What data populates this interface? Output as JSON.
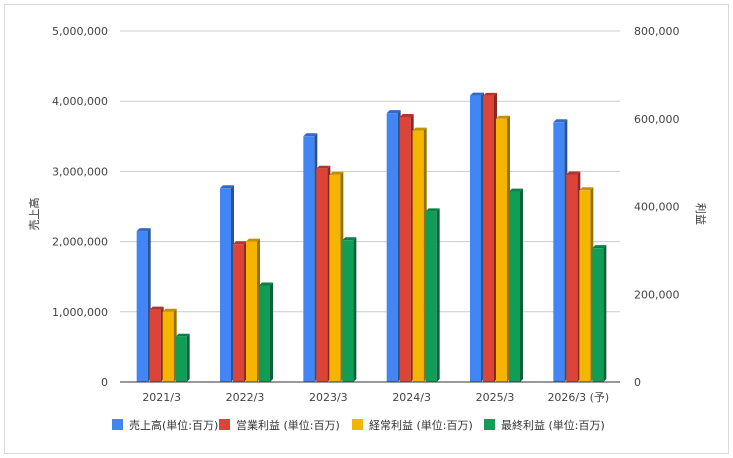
{
  "chart_data": {
    "type": "bar",
    "categories": [
      "2021/3",
      "2022/3",
      "2023/3",
      "2024/3",
      "2025/3",
      "2026/3 (予)"
    ],
    "ylabel_left": "売上高",
    "ylabel_right": "利益",
    "ylim_left": [
      0,
      5000000
    ],
    "ylim_right": [
      0,
      800000
    ],
    "yticks_left": [
      "0",
      "1,000,000",
      "2,000,000",
      "3,000,000",
      "4,000,000",
      "5,000,000"
    ],
    "yticks_right": [
      "0",
      "200,000",
      "400,000",
      "600,000",
      "800,000"
    ],
    "grid": true,
    "legend_position": "bottom",
    "series": [
      {
        "name": "売上高(単位:百万)",
        "axis": "left",
        "color": "#4285f4",
        "values": [
          2150000,
          2760000,
          3500000,
          3830000,
          4080000,
          3700000
        ]
      },
      {
        "name": "営業利益 (単位:百万)",
        "axis": "right",
        "color": "#db4437",
        "values": [
          165000,
          314000,
          486000,
          604000,
          652000,
          473000
        ]
      },
      {
        "name": "経常利益 (単位:百万)",
        "axis": "right",
        "color": "#f4b400",
        "values": [
          160000,
          320000,
          472000,
          573000,
          600000,
          437000
        ]
      },
      {
        "name": "最終利益 (単位:百万)",
        "axis": "right",
        "color": "#0f9d58",
        "values": [
          103000,
          220000,
          323000,
          389000,
          434000,
          305000
        ]
      }
    ]
  }
}
